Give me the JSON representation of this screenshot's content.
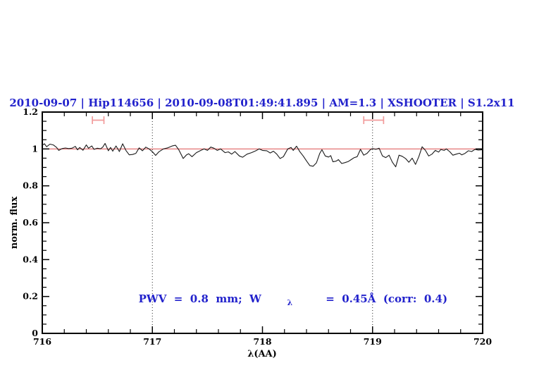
{
  "header": {
    "title": "2010-09-07 | Hip114656 | 2010-09-08T01:49:41.895 | AM=1.3 | XSHOOTER | S1.2x11",
    "title_color": "#2222cc"
  },
  "annotation": {
    "part1": "PWV  =  0.8  mm;  W",
    "lambda": "λ",
    "part2": "  =  0.45Å  (corr:  0.4)",
    "color": "#2222cc"
  },
  "chart_data": {
    "type": "line",
    "title": "2010-09-07 | Hip114656 | 2010-09-08T01:49:41.895 | AM=1.3 | XSHOOTER | S1.2x11",
    "xlabel": "λ(AA)",
    "ylabel": "norm. flux",
    "xlim": [
      716,
      720
    ],
    "ylim": [
      0,
      1.2
    ],
    "grid": false,
    "legend": null,
    "xticks": {
      "values": [
        716,
        717,
        718,
        719,
        720
      ],
      "labels": [
        "716",
        "717",
        "718",
        "719",
        "720"
      ],
      "minor_step": 0.2
    },
    "yticks": {
      "values": [
        0,
        0.2,
        0.4,
        0.6,
        0.8,
        1.0,
        1.2
      ],
      "labels": [
        "0",
        "0.2",
        "0.4",
        "0.6",
        "0.8",
        "1",
        "1.2"
      ],
      "minor_step": 0.05
    },
    "dotted_vlines": {
      "x": [
        717,
        719
      ],
      "color": "#222222"
    },
    "continuum_line": {
      "y": 1.0,
      "color": "#e06363"
    },
    "band_markers": {
      "color": "#f29b9b",
      "items": [
        {
          "x1": 716.455,
          "x2": 716.56,
          "y": 1.156,
          "cap": 0.021
        },
        {
          "x1": 718.92,
          "x2": 719.1,
          "y": 1.156,
          "cap": 0.021
        }
      ]
    },
    "series": [
      {
        "name": "spectrum",
        "color": "#1a1a1a",
        "points": [
          [
            716.0,
            1.02
          ],
          [
            716.02,
            1.028
          ],
          [
            716.04,
            1.012
          ],
          [
            716.07,
            1.026
          ],
          [
            716.1,
            1.022
          ],
          [
            716.13,
            1.008
          ],
          [
            716.15,
            0.992
          ],
          [
            716.18,
            1.002
          ],
          [
            716.21,
            1.005
          ],
          [
            716.24,
            1.002
          ],
          [
            716.27,
            1.004
          ],
          [
            716.3,
            1.014
          ],
          [
            716.32,
            0.995
          ],
          [
            716.34,
            1.008
          ],
          [
            716.37,
            0.993
          ],
          [
            716.4,
            1.022
          ],
          [
            716.42,
            1.004
          ],
          [
            716.45,
            1.016
          ],
          [
            716.47,
            0.998
          ],
          [
            716.5,
            1.004
          ],
          [
            716.53,
            1.001
          ],
          [
            716.55,
            1.01
          ],
          [
            716.57,
            1.03
          ],
          [
            716.6,
            0.99
          ],
          [
            716.62,
            1.008
          ],
          [
            716.64,
            0.988
          ],
          [
            716.67,
            1.016
          ],
          [
            716.7,
            0.986
          ],
          [
            716.73,
            1.028
          ],
          [
            716.76,
            0.992
          ],
          [
            716.79,
            0.968
          ],
          [
            716.82,
            0.97
          ],
          [
            716.85,
            0.976
          ],
          [
            716.88,
            1.006
          ],
          [
            716.91,
            0.99
          ],
          [
            716.94,
            1.01
          ],
          [
            716.97,
            1.0
          ],
          [
            717.0,
            0.985
          ],
          [
            717.03,
            0.965
          ],
          [
            717.06,
            0.985
          ],
          [
            717.1,
            1.0
          ],
          [
            717.14,
            1.006
          ],
          [
            717.18,
            1.016
          ],
          [
            717.21,
            1.02
          ],
          [
            717.24,
            0.995
          ],
          [
            717.28,
            0.948
          ],
          [
            717.31,
            0.968
          ],
          [
            717.33,
            0.974
          ],
          [
            717.36,
            0.958
          ],
          [
            717.4,
            0.98
          ],
          [
            717.44,
            0.992
          ],
          [
            717.47,
            1.0
          ],
          [
            717.5,
            0.992
          ],
          [
            717.53,
            1.01
          ],
          [
            717.56,
            1.004
          ],
          [
            717.59,
            0.992
          ],
          [
            717.62,
            1.0
          ],
          [
            717.66,
            0.98
          ],
          [
            717.69,
            0.984
          ],
          [
            717.72,
            0.972
          ],
          [
            717.75,
            0.986
          ],
          [
            717.79,
            0.962
          ],
          [
            717.82,
            0.955
          ],
          [
            717.86,
            0.972
          ],
          [
            717.9,
            0.98
          ],
          [
            717.94,
            0.99
          ],
          [
            717.97,
            1.0
          ],
          [
            718.0,
            0.992
          ],
          [
            718.04,
            0.99
          ],
          [
            718.07,
            0.978
          ],
          [
            718.1,
            0.988
          ],
          [
            718.13,
            0.972
          ],
          [
            718.16,
            0.948
          ],
          [
            718.19,
            0.958
          ],
          [
            718.23,
            1.0
          ],
          [
            718.26,
            1.008
          ],
          [
            718.28,
            0.992
          ],
          [
            718.31,
            1.015
          ],
          [
            718.34,
            0.985
          ],
          [
            718.37,
            0.962
          ],
          [
            718.4,
            0.935
          ],
          [
            718.43,
            0.91
          ],
          [
            718.46,
            0.906
          ],
          [
            718.49,
            0.925
          ],
          [
            718.52,
            0.975
          ],
          [
            718.54,
            0.996
          ],
          [
            718.57,
            0.962
          ],
          [
            718.6,
            0.956
          ],
          [
            718.62,
            0.964
          ],
          [
            718.64,
            0.93
          ],
          [
            718.67,
            0.934
          ],
          [
            718.69,
            0.942
          ],
          [
            718.72,
            0.921
          ],
          [
            718.75,
            0.926
          ],
          [
            718.78,
            0.932
          ],
          [
            718.81,
            0.944
          ],
          [
            718.83,
            0.952
          ],
          [
            718.86,
            0.958
          ],
          [
            718.89,
            0.998
          ],
          [
            718.92,
            0.966
          ],
          [
            718.95,
            0.976
          ],
          [
            718.98,
            0.996
          ],
          [
            719.0,
            1.002
          ],
          [
            719.03,
            0.998
          ],
          [
            719.06,
            1.004
          ],
          [
            719.09,
            0.962
          ],
          [
            719.12,
            0.953
          ],
          [
            719.15,
            0.966
          ],
          [
            719.18,
            0.928
          ],
          [
            719.21,
            0.903
          ],
          [
            719.24,
            0.966
          ],
          [
            719.27,
            0.96
          ],
          [
            719.3,
            0.948
          ],
          [
            719.33,
            0.928
          ],
          [
            719.36,
            0.95
          ],
          [
            719.39,
            0.916
          ],
          [
            719.42,
            0.958
          ],
          [
            719.45,
            1.012
          ],
          [
            719.48,
            0.992
          ],
          [
            719.51,
            0.962
          ],
          [
            719.54,
            0.972
          ],
          [
            719.57,
            0.992
          ],
          [
            719.6,
            0.983
          ],
          [
            719.62,
            0.997
          ],
          [
            719.65,
            0.992
          ],
          [
            719.67,
            1.0
          ],
          [
            719.7,
            0.986
          ],
          [
            719.73,
            0.966
          ],
          [
            719.76,
            0.972
          ],
          [
            719.79,
            0.977
          ],
          [
            719.81,
            0.968
          ],
          [
            719.84,
            0.976
          ],
          [
            719.87,
            0.99
          ],
          [
            719.9,
            0.986
          ],
          [
            719.93,
            0.998
          ],
          [
            719.96,
            0.994
          ],
          [
            720.0,
            0.996
          ]
        ]
      }
    ]
  }
}
